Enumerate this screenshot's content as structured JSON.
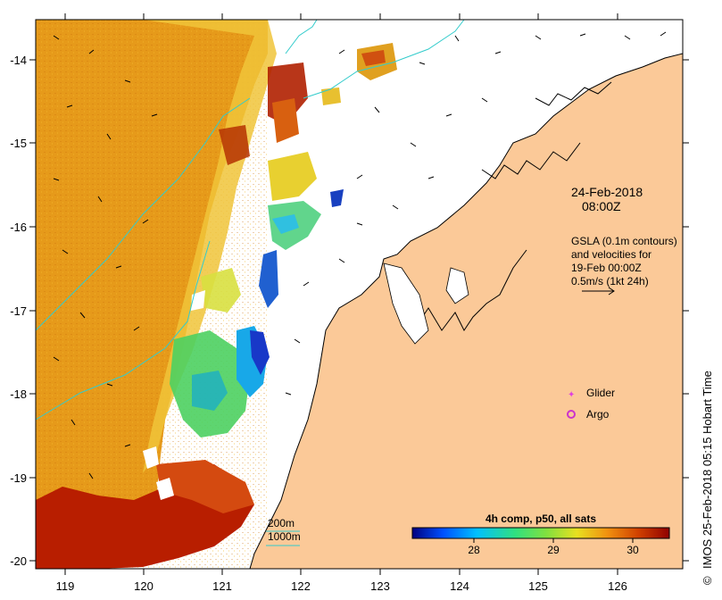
{
  "map": {
    "x_axis": {
      "labels": [
        "119",
        "120",
        "121",
        "122",
        "123",
        "124",
        "125",
        "126"
      ]
    },
    "y_axis": {
      "labels": [
        "-14",
        "-15",
        "-16",
        "-17",
        "-18",
        "-19",
        "-20"
      ]
    }
  },
  "annotations": {
    "date": "24-Feb-2018",
    "time": "08:00Z",
    "gsla_lines": [
      "GSLA (0.1m contours)",
      "and velocities for",
      "19-Feb 00:00Z",
      "0.5m/s (1kt 24h)"
    ]
  },
  "legend": {
    "glider": {
      "label": "Glider",
      "color": "#e040e0"
    },
    "argo": {
      "label": "Argo",
      "color": "#cc33cc"
    }
  },
  "bathymetry": {
    "labels": [
      "200m",
      "1000m"
    ],
    "color": "#33cccc"
  },
  "colorbar": {
    "title": "4h comp, p50, all sats",
    "ticks": [
      "28",
      "29",
      "30"
    ],
    "colors": [
      "#000080",
      "#0050ff",
      "#00c0ff",
      "#30e080",
      "#80e040",
      "#e8e020",
      "#f09010",
      "#d04000",
      "#900000"
    ]
  },
  "credit": "IMOS 25-Feb-2018 05:15 Hobart Time",
  "credit_symbol": "©",
  "colors": {
    "land": "#fbc998",
    "sea_warm": "#e69a1a",
    "sea_hot": "#b81e00"
  }
}
